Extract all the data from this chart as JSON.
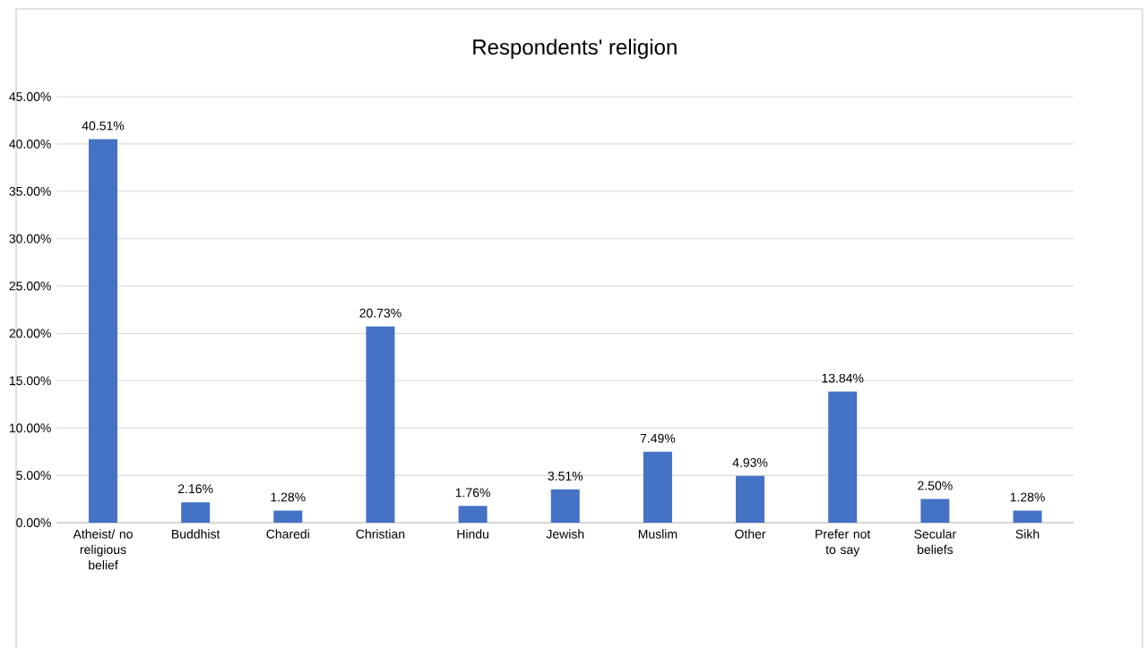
{
  "chart_data": {
    "type": "bar",
    "title": "Respondents' religion",
    "categories": [
      "Atheist/ no religious belief",
      "Buddhist",
      "Charedi",
      "Christian",
      "Hindu",
      "Jewish",
      "Muslim",
      "Other",
      "Prefer not to say",
      "Secular beliefs",
      "Sikh"
    ],
    "values": [
      40.51,
      2.16,
      1.28,
      20.73,
      1.76,
      3.51,
      7.49,
      4.93,
      13.84,
      2.5,
      1.28
    ],
    "value_labels": [
      "40.51%",
      "2.16%",
      "1.28%",
      "20.73%",
      "1.76%",
      "3.51%",
      "7.49%",
      "4.93%",
      "13.84%",
      "2.50%",
      "1.28%"
    ],
    "color": "#4472c4",
    "ylim": [
      0,
      45
    ],
    "yticks": [
      {
        "value": 0,
        "label": "0.00%"
      },
      {
        "value": 5,
        "label": "5.00%"
      },
      {
        "value": 10,
        "label": "10.00%"
      },
      {
        "value": 15,
        "label": "15.00%"
      },
      {
        "value": 20,
        "label": "20.00%"
      },
      {
        "value": 25,
        "label": "25.00%"
      },
      {
        "value": 30,
        "label": "30.00%"
      },
      {
        "value": 35,
        "label": "35.00%"
      },
      {
        "value": 40,
        "label": "40.00%"
      },
      {
        "value": 45,
        "label": "45.00%"
      }
    ],
    "grid": "y"
  }
}
